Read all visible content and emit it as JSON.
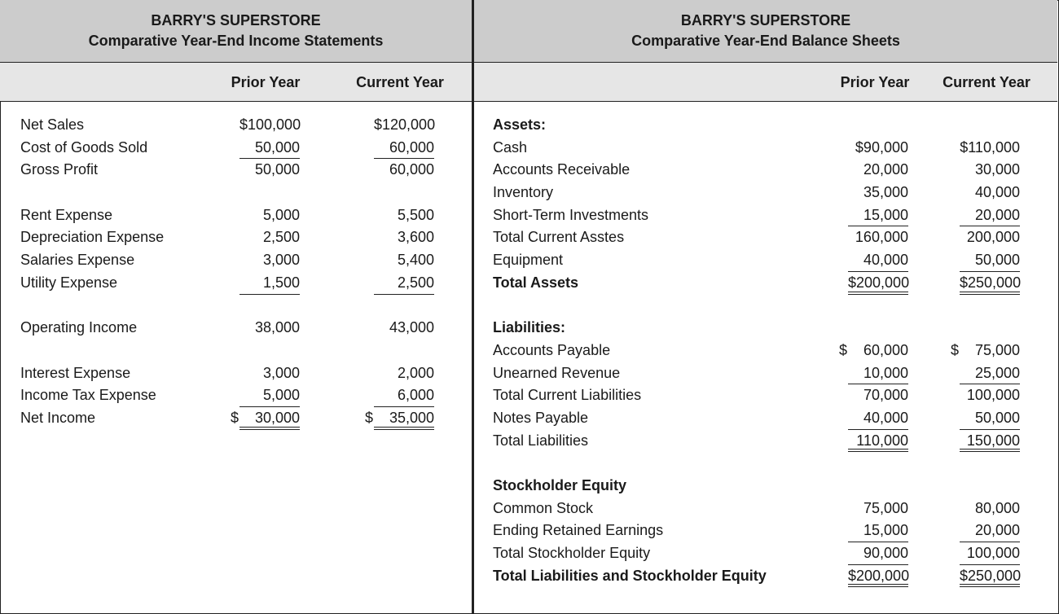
{
  "income_statement": {
    "company": "BARRY'S SUPERSTORE",
    "title": "Comparative Year-End Income Statements",
    "columns": [
      "Prior Year",
      "Current Year"
    ],
    "rows": [
      {
        "label": "Net Sales",
        "prior": "$100,000",
        "current": "$120,000"
      },
      {
        "label": "Cost of Goods Sold",
        "prior": "50,000",
        "current": "60,000",
        "rule": "single"
      },
      {
        "label": "Gross Profit",
        "prior": "50,000",
        "current": "60,000"
      },
      {
        "label": "",
        "prior": "",
        "current": ""
      },
      {
        "label": "Rent Expense",
        "prior": "5,000",
        "current": "5,500"
      },
      {
        "label": "Depreciation Expense",
        "prior": "2,500",
        "current": "3,600"
      },
      {
        "label": "Salaries Expense",
        "prior": "3,000",
        "current": "5,400"
      },
      {
        "label": "Utility Expense",
        "prior": "1,500",
        "current": "2,500",
        "rule": "single"
      },
      {
        "label": "",
        "prior": "",
        "current": ""
      },
      {
        "label": "Operating Income",
        "prior": "38,000",
        "current": "43,000"
      },
      {
        "label": "",
        "prior": "",
        "current": ""
      },
      {
        "label": "Interest Expense",
        "prior": "3,000",
        "current": "2,000"
      },
      {
        "label": "Income Tax Expense",
        "prior": "5,000",
        "current": "6,000",
        "rule": "single"
      },
      {
        "label": "Net Income",
        "prior": "$ 30,000",
        "current": "$ 35,000",
        "rule": "double"
      }
    ]
  },
  "balance_sheet": {
    "company": "BARRY'S SUPERSTORE",
    "title": "Comparative Year-End Balance Sheets",
    "columns": [
      "Prior Year",
      "Current Year"
    ],
    "rows": [
      {
        "label": "Assets:",
        "prior": "",
        "current": "",
        "bold": true
      },
      {
        "label": "Cash",
        "prior": "$90,000",
        "current": "$110,000"
      },
      {
        "label": "Accounts Receivable",
        "prior": "20,000",
        "current": "30,000"
      },
      {
        "label": "Inventory",
        "prior": "35,000",
        "current": "40,000"
      },
      {
        "label": "Short-Term Investments",
        "prior": "15,000",
        "current": "20,000",
        "rule": "single"
      },
      {
        "label": "Total Current Asstes",
        "prior": "160,000",
        "current": "200,000"
      },
      {
        "label": "Equipment",
        "prior": "40,000",
        "current": "50,000",
        "rule": "single"
      },
      {
        "label": "Total Assets",
        "prior": "$200,000",
        "current": "$250,000",
        "rule": "double",
        "bold": true
      },
      {
        "label": "",
        "prior": "",
        "current": ""
      },
      {
        "label": "Liabilities:",
        "prior": "",
        "current": "",
        "bold": true
      },
      {
        "label": "Accounts Payable",
        "prior": "$ 60,000",
        "current": "$ 75,000"
      },
      {
        "label": "Unearned Revenue",
        "prior": "10,000",
        "current": "25,000",
        "rule": "single"
      },
      {
        "label": "Total Current Liabilities",
        "prior": "70,000",
        "current": "100,000"
      },
      {
        "label": "Notes Payable",
        "prior": "40,000",
        "current": "50,000",
        "rule": "single"
      },
      {
        "label": "Total Liabilities",
        "prior": "110,000",
        "current": "150,000",
        "rule": "double"
      },
      {
        "label": "",
        "prior": "",
        "current": ""
      },
      {
        "label": "Stockholder Equity",
        "prior": "",
        "current": "",
        "bold": true
      },
      {
        "label": "Common Stock",
        "prior": "75,000",
        "current": "80,000"
      },
      {
        "label": "Ending Retained Earnings",
        "prior": "15,000",
        "current": "20,000",
        "rule": "single"
      },
      {
        "label": "Total Stockholder Equity",
        "prior": "90,000",
        "current": "100,000",
        "rule": "single"
      },
      {
        "label": "Total Liabilities and Stockholder Equity",
        "prior": "$200,000",
        "current": "$250,000",
        "rule": "double",
        "bold": true
      }
    ]
  }
}
